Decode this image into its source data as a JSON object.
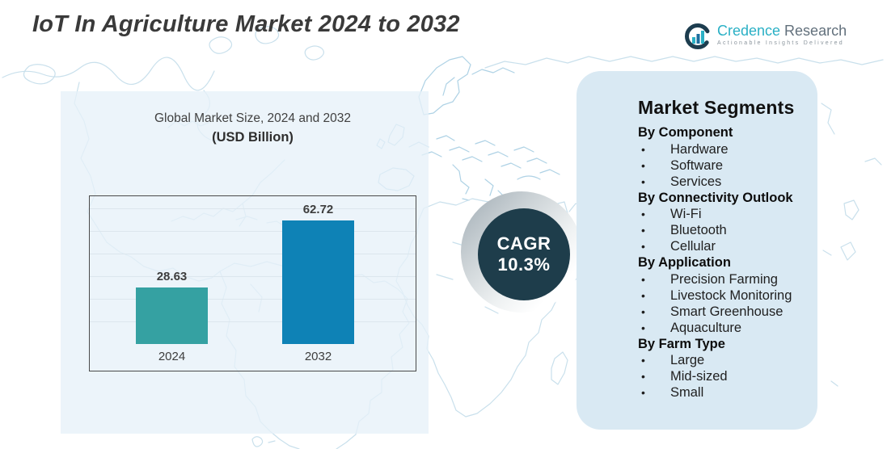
{
  "page": {
    "title": "IoT In Agriculture Market 2024 to 2032"
  },
  "logo": {
    "icon": "bar-chart-circle-icon",
    "brand_primary": "Credence",
    "brand_secondary": " Research",
    "tagline": "Actionable Insights Delivered"
  },
  "chart_data": {
    "type": "bar",
    "title": "Global Market Size, 2024 and 2032",
    "subtitle": "(USD Billion)",
    "categories": [
      "2024",
      "2032"
    ],
    "values": [
      28.63,
      62.72
    ],
    "data_labels": [
      "28.63",
      "62.72"
    ],
    "bar_colors": [
      "#35a1a2",
      "#0e82b6"
    ],
    "ylabel": "",
    "xlabel": "",
    "ylim": [
      0,
      70
    ],
    "grid": true,
    "legend": "none"
  },
  "cagr": {
    "label": "CAGR",
    "value": "10.3%",
    "circle_color": "#1e3d4b"
  },
  "segments": {
    "title": "Market Segments",
    "panel_color": "#d9e9f3",
    "groups": [
      {
        "heading": "By Component",
        "items": [
          "Hardware",
          "Software",
          "Services"
        ]
      },
      {
        "heading": "By Connectivity Outlook",
        "items": [
          "Wi-Fi",
          "Bluetooth",
          "Cellular"
        ]
      },
      {
        "heading": "By Application",
        "items": [
          "Precision Farming",
          "Livestock Monitoring",
          "Smart Greenhouse",
          "Aquaculture"
        ]
      },
      {
        "heading": "By Farm Type",
        "items": [
          "Large",
          "Mid-sized",
          "Small"
        ]
      }
    ]
  }
}
